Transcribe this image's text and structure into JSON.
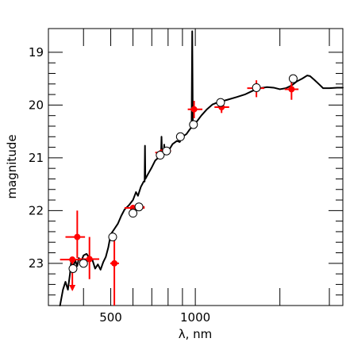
{
  "chart_data": {
    "type": "scatter",
    "xlabel": "λ, nm",
    "ylabel": "magnitude",
    "x_scale": "log",
    "xlim": [
      300,
      3350
    ],
    "ylim": [
      23.8,
      18.55
    ],
    "y_inverted": true,
    "x_tick_labels": [
      {
        "value": 500,
        "label": "500"
      },
      {
        "value": 1000,
        "label": "1000"
      }
    ],
    "x_minor_ticks": [
      400,
      500,
      600,
      700,
      800,
      900,
      1000,
      2000,
      3000
    ],
    "y_tick_labels": [
      {
        "value": 19,
        "label": "19"
      },
      {
        "value": 20,
        "label": "20"
      },
      {
        "value": 21,
        "label": "21"
      },
      {
        "value": 22,
        "label": "22"
      },
      {
        "value": 23,
        "label": "23"
      }
    ],
    "y_minor_ticks": [
      19.0,
      19.2,
      19.4,
      19.6,
      19.8,
      20.0,
      20.2,
      20.4,
      20.6,
      20.8,
      21.0,
      21.2,
      21.4,
      21.6,
      21.8,
      22.0,
      22.2,
      22.4,
      22.6,
      22.8,
      23.0,
      23.2,
      23.4,
      23.6
    ],
    "colors": {
      "observed": "#ff0000",
      "model": "#000000",
      "spectrum": "#000000"
    },
    "series": [
      {
        "kind": "spectrum-line",
        "points": [
          [
            330,
            23.8
          ],
          [
            338,
            23.5
          ],
          [
            345,
            23.35
          ],
          [
            352,
            23.5
          ],
          [
            358,
            23.2
          ],
          [
            362,
            22.95
          ],
          [
            368,
            23.05
          ],
          [
            374,
            22.95
          ],
          [
            380,
            23.05
          ],
          [
            385,
            22.9
          ],
          [
            392,
            22.97
          ],
          [
            400,
            22.85
          ],
          [
            410,
            22.82
          ],
          [
            420,
            22.9
          ],
          [
            430,
            22.93
          ],
          [
            440,
            23.1
          ],
          [
            450,
            23.02
          ],
          [
            460,
            23.12
          ],
          [
            470,
            22.98
          ],
          [
            480,
            22.88
          ],
          [
            490,
            22.7
          ],
          [
            500,
            22.45
          ],
          [
            515,
            22.35
          ],
          [
            530,
            22.25
          ],
          [
            545,
            22.1
          ],
          [
            560,
            21.98
          ],
          [
            580,
            21.9
          ],
          [
            600,
            21.8
          ],
          [
            615,
            21.65
          ],
          [
            625,
            21.72
          ],
          [
            640,
            21.55
          ],
          [
            655,
            21.45
          ],
          [
            660,
            21.45
          ],
          [
            662,
            20.77
          ],
          [
            664,
            21.4
          ],
          [
            680,
            21.3
          ],
          [
            700,
            21.18
          ],
          [
            720,
            21.05
          ],
          [
            745,
            20.98
          ],
          [
            755,
            20.95
          ],
          [
            758,
            20.6
          ],
          [
            761,
            20.92
          ],
          [
            772,
            20.92
          ],
          [
            775,
            20.75
          ],
          [
            778,
            20.9
          ],
          [
            800,
            20.88
          ],
          [
            830,
            20.74
          ],
          [
            860,
            20.68
          ],
          [
            880,
            20.7
          ],
          [
            900,
            20.6
          ],
          [
            930,
            20.55
          ],
          [
            950,
            20.48
          ],
          [
            970,
            20.42
          ],
          [
            975,
            18.6
          ],
          [
            980,
            20.4
          ],
          [
            1000,
            20.35
          ],
          [
            1050,
            20.2
          ],
          [
            1100,
            20.08
          ],
          [
            1150,
            19.99
          ],
          [
            1200,
            19.95
          ],
          [
            1300,
            19.9
          ],
          [
            1400,
            19.85
          ],
          [
            1500,
            19.8
          ],
          [
            1600,
            19.73
          ],
          [
            1700,
            19.68
          ],
          [
            1800,
            19.66
          ],
          [
            1900,
            19.67
          ],
          [
            2000,
            19.7
          ],
          [
            2100,
            19.68
          ],
          [
            2200,
            19.63
          ],
          [
            2300,
            19.55
          ],
          [
            2400,
            19.5
          ],
          [
            2500,
            19.44
          ],
          [
            2560,
            19.45
          ],
          [
            2650,
            19.52
          ],
          [
            2750,
            19.6
          ],
          [
            2850,
            19.68
          ],
          [
            3000,
            19.68
          ],
          [
            3200,
            19.67
          ],
          [
            3350,
            19.67
          ]
        ]
      },
      {
        "kind": "observed",
        "points": [
          {
            "x": 365,
            "y": 22.93,
            "xerr": [
              330,
              420
            ],
            "yerr": [
              22.93,
              23.5
            ],
            "upper_limit": true
          },
          {
            "x": 380,
            "y": 22.5,
            "xerr": [
              345,
              405
            ],
            "yerr": [
              22.0,
              22.9
            ]
          },
          {
            "x": 420,
            "y": 22.92,
            "xerr": [
              385,
              455
            ],
            "yerr": [
              22.5,
              23.3
            ]
          },
          {
            "x": 515,
            "y": 23.0,
            "xerr": [
              498,
              535
            ],
            "yerr": [
              22.55,
              23.8
            ]
          },
          {
            "x": 600,
            "y": 21.95,
            "xerr": [
              560,
              660
            ],
            "yerr": [
              21.9,
              22.0
            ]
          },
          {
            "x": 625,
            "y": 21.93,
            "xerr": [
              590,
              660
            ],
            "yerr": [
              21.88,
              21.98
            ]
          },
          {
            "x": 760,
            "y": 20.9,
            "xerr": [
              720,
              800
            ],
            "yerr": [
              20.85,
              20.95
            ]
          },
          {
            "x": 790,
            "y": 20.87,
            "xerr": [
              760,
              820
            ],
            "yerr": [
              20.82,
              20.92
            ]
          },
          {
            "x": 880,
            "y": 20.6,
            "xerr": [
              860,
              905
            ],
            "yerr": [
              20.55,
              20.65
            ]
          },
          {
            "x": 990,
            "y": 20.08,
            "xerr": [
              940,
              1060
            ],
            "yerr": [
              19.92,
              20.25
            ]
          },
          {
            "x": 1240,
            "y": 20.04,
            "xerr": [
              1170,
              1320
            ],
            "yerr": [
              19.9,
              20.15
            ]
          },
          {
            "x": 1650,
            "y": 19.68,
            "xerr": [
              1530,
              1760
            ],
            "yerr": [
              19.53,
              19.85
            ]
          },
          {
            "x": 2200,
            "y": 19.7,
            "xerr": [
              2080,
              2330
            ],
            "yerr": [
              19.55,
              19.9
            ]
          }
        ]
      },
      {
        "kind": "model",
        "points": [
          [
            367,
            23.1
          ],
          [
            400,
            23.0
          ],
          [
            508,
            22.5
          ],
          [
            600,
            22.05
          ],
          [
            630,
            21.93
          ],
          [
            750,
            20.95
          ],
          [
            790,
            20.87
          ],
          [
            885,
            20.6
          ],
          [
            985,
            20.37
          ],
          [
            1230,
            19.95
          ],
          [
            1650,
            19.67
          ],
          [
            2230,
            19.5
          ]
        ]
      }
    ]
  }
}
